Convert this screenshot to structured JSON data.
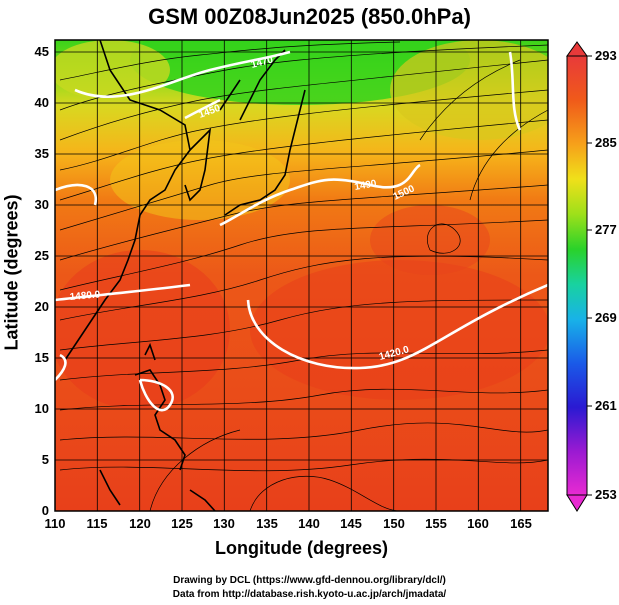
{
  "title": "GSM 00Z08Jun2025 (850.0hPa)",
  "xlabel": "Longitude (degrees)",
  "ylabel": "Latitude  (degrees)",
  "credit_line1": "Drawing by DCL (https://www.gfd-dennou.org/library/dcl/)",
  "credit_line2": "Data from http://database.rish.kyoto-u.ac.jp/arch/jmadata/",
  "x_ticks": [
    "110",
    "115",
    "120",
    "125",
    "130",
    "135",
    "140",
    "145",
    "150",
    "155",
    "160",
    "165"
  ],
  "y_ticks": [
    "0",
    "5",
    "10",
    "15",
    "20",
    "25",
    "30",
    "35",
    "40",
    "45"
  ],
  "colorbar_ticks": [
    "293",
    "285",
    "277",
    "269",
    "261",
    "253"
  ],
  "contour_labels": [
    "1470",
    "1490",
    "1500",
    "1480.0",
    "1420.0",
    "1450"
  ],
  "colors": {
    "warm_red": "#e8341c",
    "orange": "#f26a12",
    "yellow": "#f5d21e",
    "green": "#34d01c",
    "contour": "#ffffff",
    "streamline": "#000000"
  }
}
